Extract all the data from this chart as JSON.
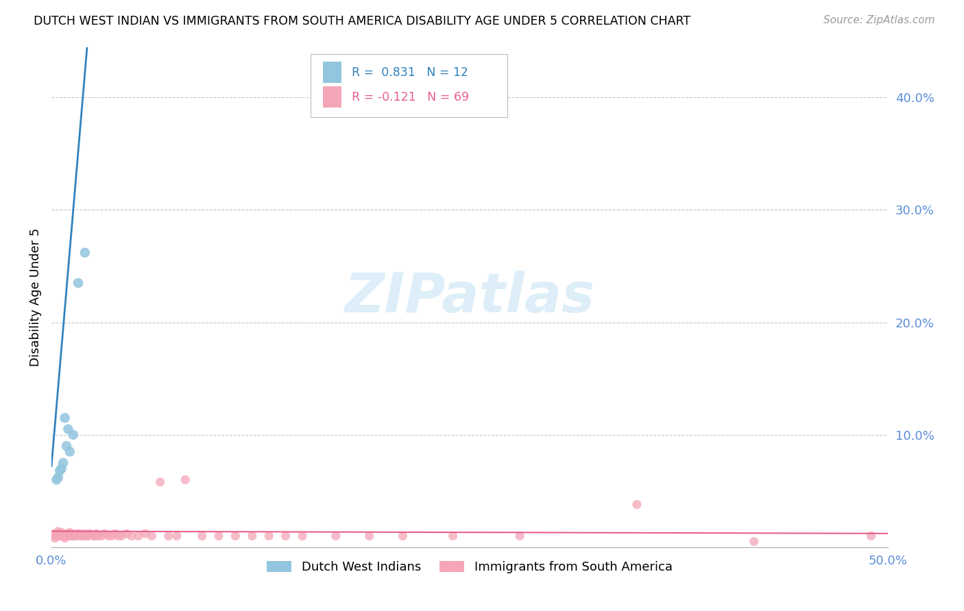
{
  "title": "DUTCH WEST INDIAN VS IMMIGRANTS FROM SOUTH AMERICA DISABILITY AGE UNDER 5 CORRELATION CHART",
  "source": "Source: ZipAtlas.com",
  "ylabel": "Disability Age Under 5",
  "right_yticks": [
    "40.0%",
    "30.0%",
    "20.0%",
    "10.0%"
  ],
  "right_ytick_vals": [
    0.4,
    0.3,
    0.2,
    0.1
  ],
  "xlim": [
    0.0,
    0.5
  ],
  "ylim": [
    0.0,
    0.445
  ],
  "watermark_text": "ZIPatlas",
  "legend_blue_r": "R =  0.831",
  "legend_blue_n": "N = 12",
  "legend_pink_r": "R = -0.121",
  "legend_pink_n": "N = 69",
  "blue_color": "#92c5de",
  "pink_color": "#f4a6b8",
  "blue_line_color": "#3182bd",
  "pink_line_color": "#e8608a",
  "axis_color": "#5b8dd9",
  "blue_scatter_x": [
    0.003,
    0.004,
    0.005,
    0.006,
    0.007,
    0.008,
    0.009,
    0.01,
    0.011,
    0.013,
    0.016,
    0.02
  ],
  "blue_scatter_y": [
    0.06,
    0.062,
    0.068,
    0.07,
    0.075,
    0.115,
    0.09,
    0.105,
    0.085,
    0.1,
    0.235,
    0.262
  ],
  "pink_scatter_x": [
    0.001,
    0.002,
    0.002,
    0.003,
    0.003,
    0.004,
    0.004,
    0.005,
    0.005,
    0.006,
    0.006,
    0.007,
    0.007,
    0.008,
    0.008,
    0.009,
    0.009,
    0.01,
    0.01,
    0.011,
    0.011,
    0.012,
    0.012,
    0.013,
    0.014,
    0.015,
    0.016,
    0.017,
    0.018,
    0.019,
    0.02,
    0.021,
    0.022,
    0.023,
    0.025,
    0.026,
    0.027,
    0.028,
    0.03,
    0.032,
    0.034,
    0.036,
    0.038,
    0.04,
    0.042,
    0.045,
    0.048,
    0.052,
    0.056,
    0.06,
    0.065,
    0.07,
    0.075,
    0.08,
    0.09,
    0.1,
    0.11,
    0.12,
    0.13,
    0.14,
    0.15,
    0.17,
    0.19,
    0.21,
    0.24,
    0.28,
    0.35,
    0.42,
    0.49
  ],
  "pink_scatter_y": [
    0.01,
    0.008,
    0.012,
    0.01,
    0.012,
    0.01,
    0.014,
    0.01,
    0.012,
    0.01,
    0.013,
    0.01,
    0.012,
    0.01,
    0.008,
    0.01,
    0.012,
    0.01,
    0.012,
    0.01,
    0.013,
    0.01,
    0.012,
    0.01,
    0.01,
    0.012,
    0.01,
    0.012,
    0.01,
    0.01,
    0.012,
    0.01,
    0.01,
    0.012,
    0.01,
    0.01,
    0.012,
    0.01,
    0.01,
    0.012,
    0.01,
    0.01,
    0.012,
    0.01,
    0.01,
    0.012,
    0.01,
    0.01,
    0.012,
    0.01,
    0.058,
    0.01,
    0.01,
    0.06,
    0.01,
    0.01,
    0.01,
    0.01,
    0.01,
    0.01,
    0.01,
    0.01,
    0.01,
    0.01,
    0.01,
    0.01,
    0.038,
    0.005,
    0.01
  ],
  "blue_line_x0": 0.0,
  "blue_line_y0": 0.072,
  "blue_line_slope": 17.5,
  "pink_line_intercept": 0.0142,
  "pink_line_slope": -0.004
}
